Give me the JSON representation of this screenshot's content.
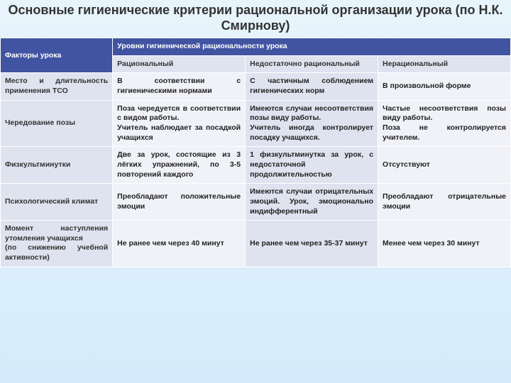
{
  "title": "Основные гигиенические критерии рациональной организации урока (по Н.К. Смирнову)",
  "header": {
    "factors": "Факторы урока",
    "levels": "Уровни гигиенической рациональности урока",
    "col1": "Рациональный",
    "col2": "Недостаточно рациональный",
    "col3": "Нерациональный"
  },
  "rows": [
    {
      "label": "Место и длительность применения ТСО",
      "c1": "В соответствии с гигиеническими нормами",
      "c2": "С частичным соблюдением гигиенических норм",
      "c3": "В произвольной форме"
    },
    {
      "label": "Чередование позы",
      "c1": "Поза чередуется в соответствии с видом работы.\nУчитель наблюдает за посадкой учащихся",
      "c2": "Имеются случаи несоответствия позы виду работы.\nУчитель иногда контролирует посадку учащихся.",
      "c3": "Частые несоответствия позы виду работы.\nПоза не контролируется учителем."
    },
    {
      "label": "Физкультминутки",
      "c1": "Две за урок, состоящие из 3 лёгких упражнений, по 3-5 повторений каждого",
      "c2": "1 физкультминутка за урок, с недостаточной продолжительностью",
      "c3": "Отсутствуют"
    },
    {
      "label": "Психологический климат",
      "c1": "Преобладают положительные эмоции",
      "c2": "Имеются случаи отрицательных эмоций. Урок, эмоционально индифферентный",
      "c3": "Преобладают отрицательные эмоции"
    },
    {
      "label": "Момент наступления утомления учащихся\n(по снижению учебной активности)",
      "c1": "Не ранее чем через 40 минут",
      "c2": "Не ранее чем через 35-37 минут",
      "c3": "Менее чем через 30 минут"
    }
  ]
}
